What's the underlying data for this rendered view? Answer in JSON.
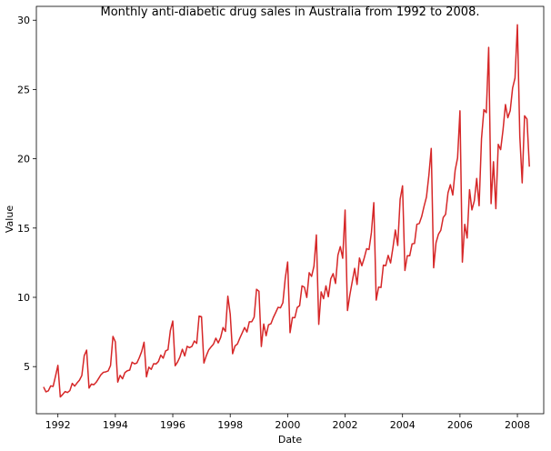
{
  "chart_data": {
    "type": "line",
    "title": "Monthly anti-diabetic drug sales in Australia from 1992 to 2008.",
    "xlabel": "Date",
    "ylabel": "Value",
    "x_tick_labels": [
      "1992",
      "1994",
      "1996",
      "1998",
      "2000",
      "2002",
      "2004",
      "2006",
      "2008"
    ],
    "y_tick_labels": [
      "5",
      "10",
      "15",
      "20",
      "25",
      "30"
    ],
    "xlim": [
      "1991-04",
      "2008-12"
    ],
    "ylim": [
      1.6,
      31.0
    ],
    "grid": false,
    "line_color": "#d62728",
    "series": [
      {
        "x": [
          "1991-07",
          "1991-08",
          "1991-09",
          "1991-10",
          "1991-11",
          "1991-12",
          "1992-01",
          "1992-02",
          "1992-03",
          "1992-04",
          "1992-05",
          "1992-06",
          "1992-07",
          "1992-08",
          "1992-09",
          "1992-10",
          "1992-11",
          "1992-12",
          "1993-01",
          "1993-02",
          "1993-03",
          "1993-04",
          "1993-05",
          "1993-06",
          "1993-07",
          "1993-08",
          "1993-09",
          "1993-10",
          "1993-11",
          "1993-12",
          "1994-01",
          "1994-02",
          "1994-03",
          "1994-04",
          "1994-05",
          "1994-06",
          "1994-07",
          "1994-08",
          "1994-09",
          "1994-10",
          "1994-11",
          "1994-12",
          "1995-01",
          "1995-02",
          "1995-03",
          "1995-04",
          "1995-05",
          "1995-06",
          "1995-07",
          "1995-08",
          "1995-09",
          "1995-10",
          "1995-11",
          "1995-12",
          "1996-01",
          "1996-02",
          "1996-03",
          "1996-04",
          "1996-05",
          "1996-06",
          "1996-07",
          "1996-08",
          "1996-09",
          "1996-10",
          "1996-11",
          "1996-12",
          "1997-01",
          "1997-02",
          "1997-03",
          "1997-04",
          "1997-05",
          "1997-06",
          "1997-07",
          "1997-08",
          "1997-09",
          "1997-10",
          "1997-11",
          "1997-12",
          "1998-01",
          "1998-02",
          "1998-03",
          "1998-04",
          "1998-05",
          "1998-06",
          "1998-07",
          "1998-08",
          "1998-09",
          "1998-10",
          "1998-11",
          "1998-12",
          "1999-01",
          "1999-02",
          "1999-03",
          "1999-04",
          "1999-05",
          "1999-06",
          "1999-07",
          "1999-08",
          "1999-09",
          "1999-10",
          "1999-11",
          "1999-12",
          "2000-01",
          "2000-02",
          "2000-03",
          "2000-04",
          "2000-05",
          "2000-06",
          "2000-07",
          "2000-08",
          "2000-09",
          "2000-10",
          "2000-11",
          "2000-12",
          "2001-01",
          "2001-02",
          "2001-03",
          "2001-04",
          "2001-05",
          "2001-06",
          "2001-07",
          "2001-08",
          "2001-09",
          "2001-10",
          "2001-11",
          "2001-12",
          "2002-01",
          "2002-02",
          "2002-03",
          "2002-04",
          "2002-05",
          "2002-06",
          "2002-07",
          "2002-08",
          "2002-09",
          "2002-10",
          "2002-11",
          "2002-12",
          "2003-01",
          "2003-02",
          "2003-03",
          "2003-04",
          "2003-05",
          "2003-06",
          "2003-07",
          "2003-08",
          "2003-09",
          "2003-10",
          "2003-11",
          "2003-12",
          "2004-01",
          "2004-02",
          "2004-03",
          "2004-04",
          "2004-05",
          "2004-06",
          "2004-07",
          "2004-08",
          "2004-09",
          "2004-10",
          "2004-11",
          "2004-12",
          "2005-01",
          "2005-02",
          "2005-03",
          "2005-04",
          "2005-05",
          "2005-06",
          "2005-07",
          "2005-08",
          "2005-09",
          "2005-10",
          "2005-11",
          "2005-12",
          "2006-01",
          "2006-02",
          "2006-03",
          "2006-04",
          "2006-05",
          "2006-06",
          "2006-07",
          "2006-08",
          "2006-09",
          "2006-10",
          "2006-11",
          "2006-12",
          "2007-01",
          "2007-02",
          "2007-03",
          "2007-04",
          "2007-05",
          "2007-06",
          "2007-07",
          "2007-08",
          "2007-09",
          "2007-10",
          "2007-11",
          "2007-12",
          "2008-01",
          "2008-02",
          "2008-03",
          "2008-04",
          "2008-05",
          "2008-06"
        ],
        "values": [
          3.53,
          3.18,
          3.25,
          3.61,
          3.57,
          4.31,
          5.09,
          2.81,
          2.99,
          3.2,
          3.13,
          3.27,
          3.79,
          3.59,
          3.82,
          4.02,
          4.36,
          5.79,
          6.19,
          3.45,
          3.74,
          3.69,
          3.87,
          4.14,
          4.42,
          4.59,
          4.62,
          4.69,
          5.08,
          7.18,
          6.79,
          3.88,
          4.37,
          4.12,
          4.57,
          4.7,
          4.75,
          5.32,
          5.2,
          5.26,
          5.64,
          6.09,
          6.76,
          4.26,
          4.96,
          4.8,
          5.21,
          5.19,
          5.37,
          5.83,
          5.61,
          6.13,
          6.22,
          7.62,
          8.29,
          5.06,
          5.33,
          5.7,
          6.25,
          5.77,
          6.46,
          6.37,
          6.46,
          6.85,
          6.68,
          8.65,
          8.6,
          5.26,
          5.78,
          6.2,
          6.42,
          6.62,
          7.05,
          6.71,
          7.1,
          7.82,
          7.54,
          10.08,
          8.79,
          5.93,
          6.49,
          6.63,
          7.05,
          7.43,
          7.82,
          7.5,
          8.24,
          8.24,
          8.57,
          10.58,
          10.44,
          6.45,
          8.07,
          7.23,
          8.02,
          8.09,
          8.54,
          8.9,
          9.28,
          9.24,
          9.61,
          11.37,
          12.55,
          7.45,
          8.54,
          8.53,
          9.27,
          9.4,
          10.83,
          10.73,
          9.99,
          11.78,
          11.51,
          12.26,
          14.5,
          8.05,
          10.39,
          9.9,
          10.83,
          10.04,
          11.33,
          11.71,
          11.0,
          13.04,
          13.66,
          12.82,
          16.3,
          9.05,
          10.18,
          11.15,
          12.09,
          10.93,
          12.84,
          12.28,
          12.84,
          13.51,
          13.45,
          14.68,
          16.83,
          9.8,
          10.74,
          10.71,
          12.32,
          12.29,
          13.03,
          12.48,
          13.59,
          14.86,
          13.74,
          17.08,
          18.05,
          11.94,
          13.0,
          13.0,
          13.86,
          13.89,
          15.27,
          15.33,
          15.83,
          16.57,
          17.24,
          18.79,
          20.75,
          12.13,
          13.94,
          14.55,
          14.84,
          15.76,
          15.99,
          17.54,
          18.13,
          17.38,
          19.18,
          20.06,
          23.46,
          12.54,
          15.27,
          14.28,
          17.77,
          16.31,
          16.97,
          18.58,
          16.61,
          21.45,
          23.55,
          23.33,
          28.04,
          16.76,
          19.79,
          16.4,
          21.04,
          20.66,
          22.09,
          23.91,
          22.96,
          23.48,
          25.11,
          25.83,
          29.67,
          21.65,
          18.26,
          23.1,
          22.87,
          19.43
        ]
      }
    ]
  }
}
